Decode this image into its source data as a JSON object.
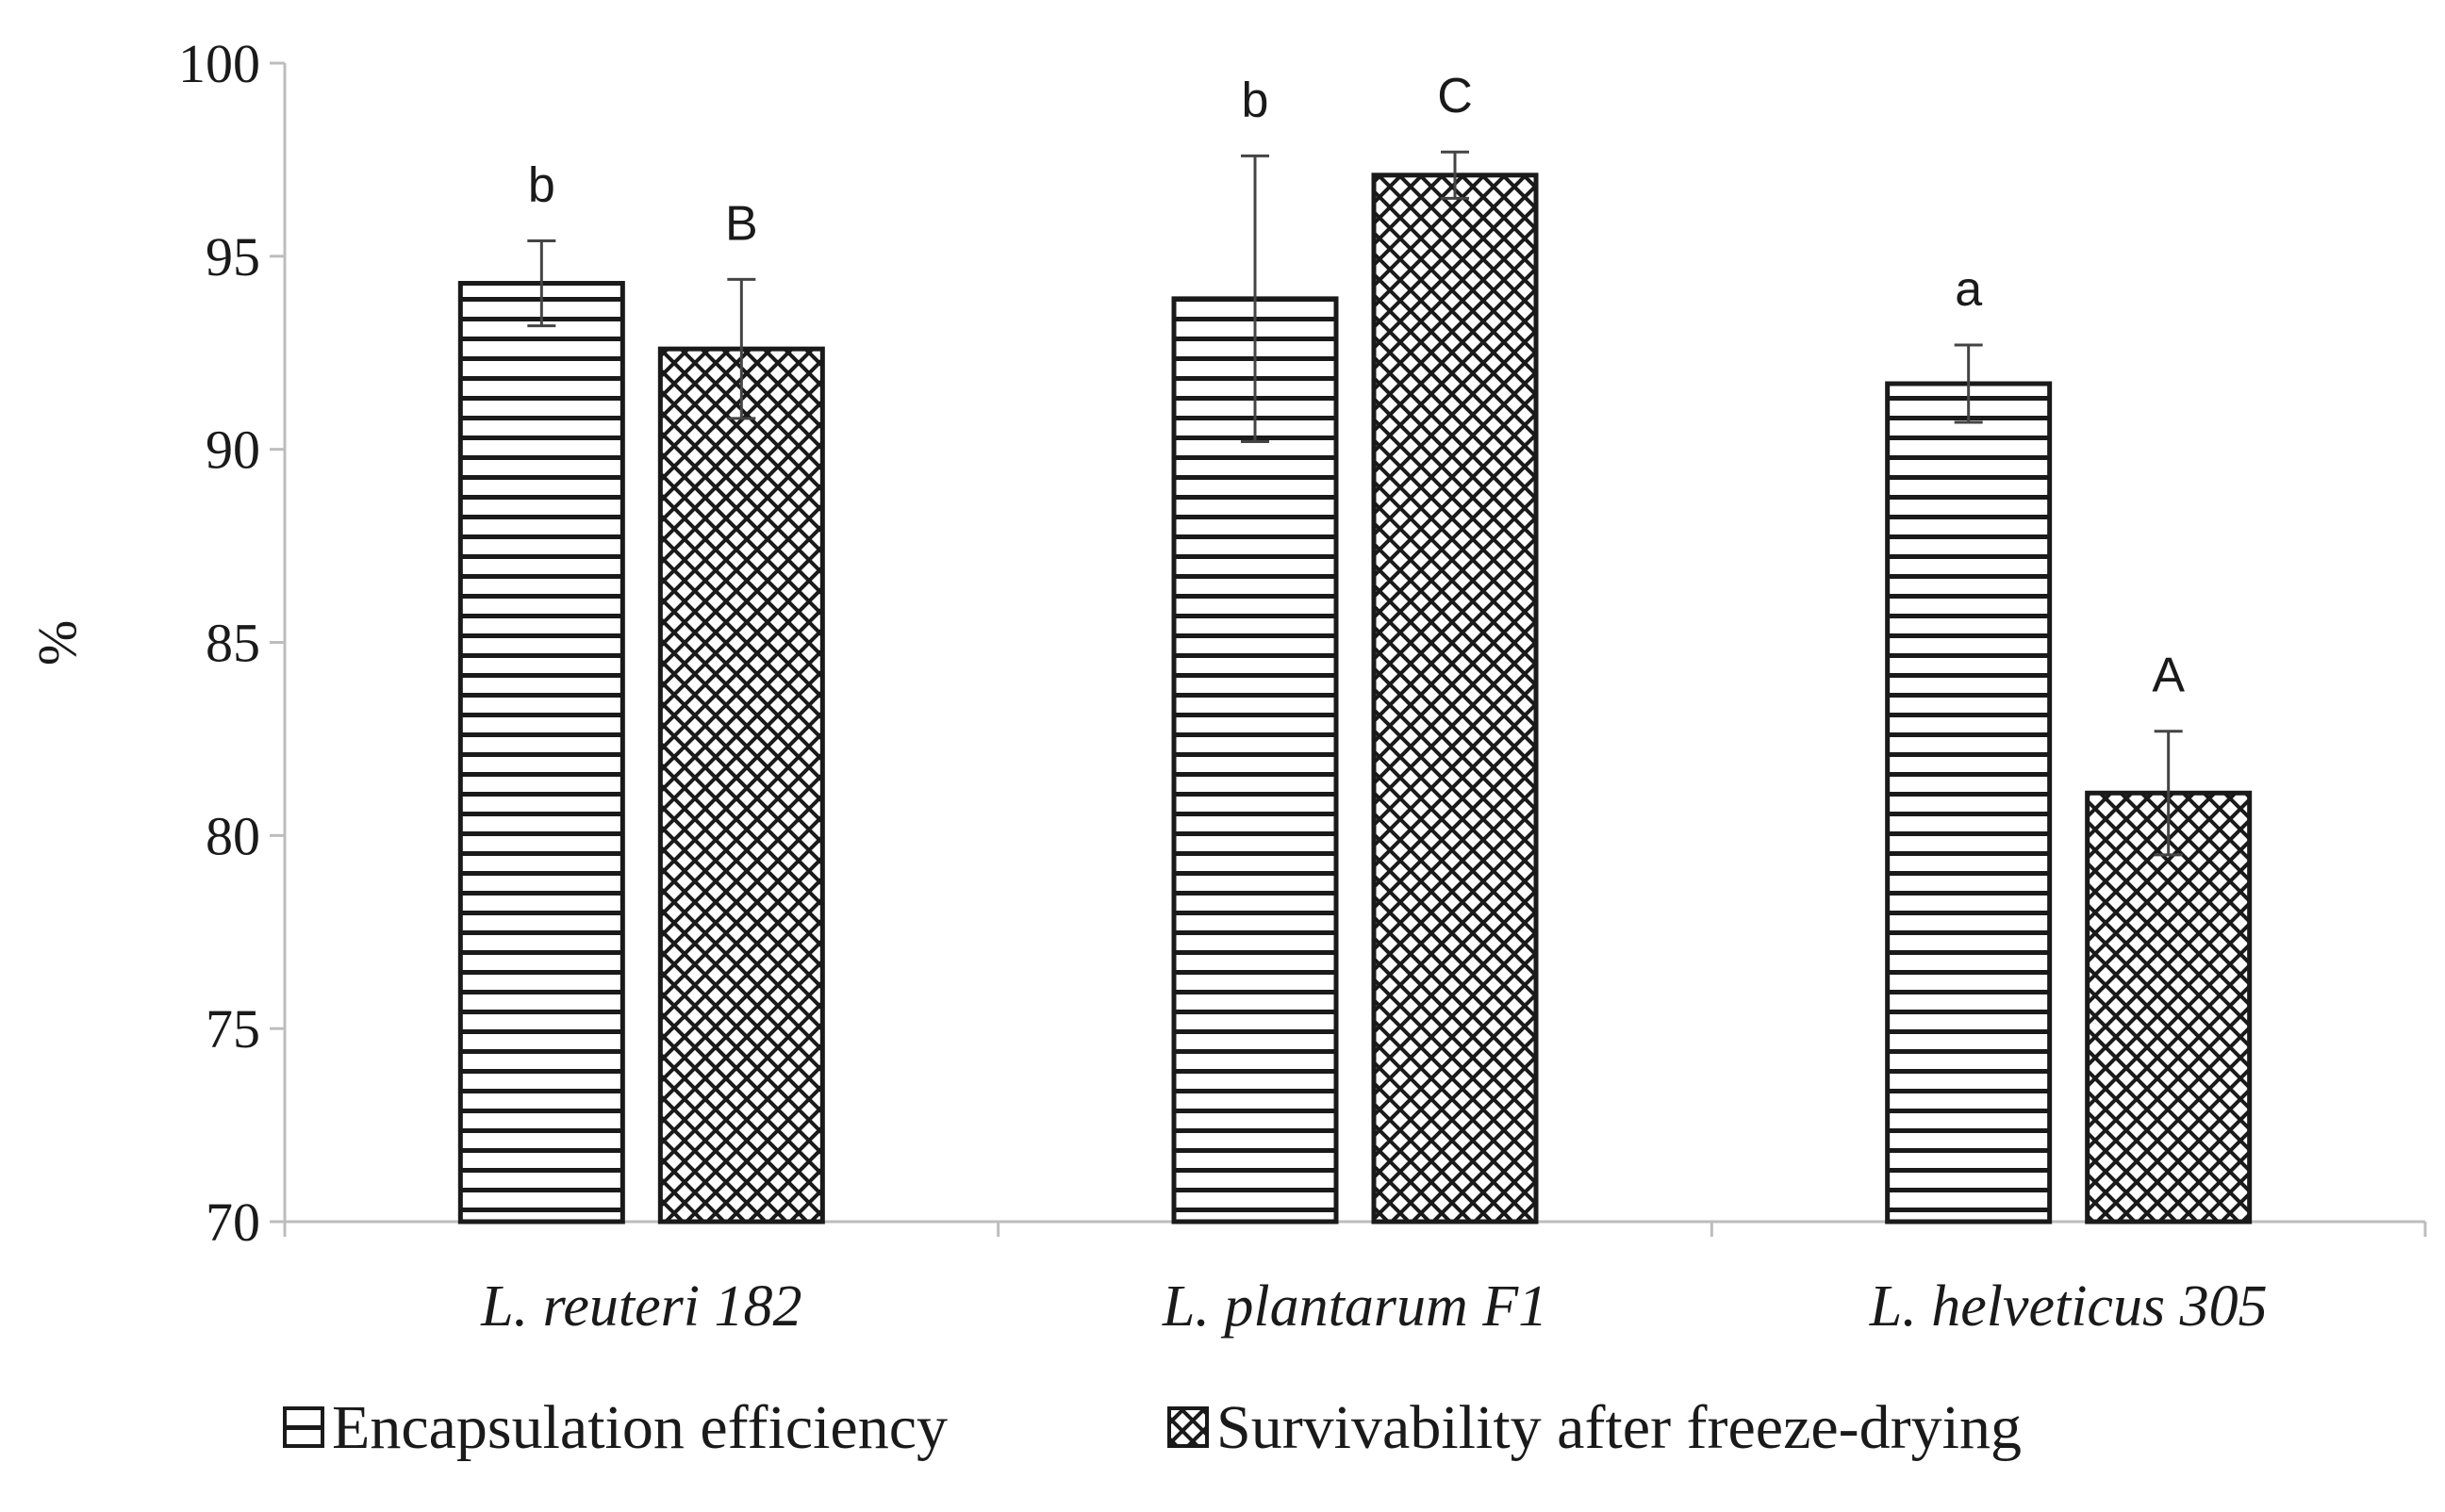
{
  "chart_data": {
    "type": "bar",
    "ylabel": "%",
    "xlabel": "",
    "ylim": [
      70,
      100
    ],
    "yticks": [
      70,
      75,
      80,
      85,
      90,
      95,
      100
    ],
    "grid": false,
    "legend_position": "bottom",
    "categories": [
      "L. reuteri 182",
      "L. plantarum F1",
      "L. helveticus 305"
    ],
    "series": [
      {
        "name": "Encapsulation efficiency",
        "pattern": "horizontal-lines",
        "values": [
          94.3,
          93.9,
          91.7
        ],
        "errors": [
          1.1,
          3.7,
          1.0
        ],
        "significance": [
          "b",
          "b",
          "a"
        ]
      },
      {
        "name": "Survivability after freeze-drying",
        "pattern": "crosshatch",
        "values": [
          92.6,
          97.1,
          81.1
        ],
        "errors": [
          1.8,
          0.6,
          1.6
        ],
        "significance": [
          "B",
          "C",
          "A"
        ]
      }
    ],
    "colors": {
      "stroke": "#1a1a1a",
      "axis": "#bdbdbd",
      "background": "#ffffff"
    }
  }
}
